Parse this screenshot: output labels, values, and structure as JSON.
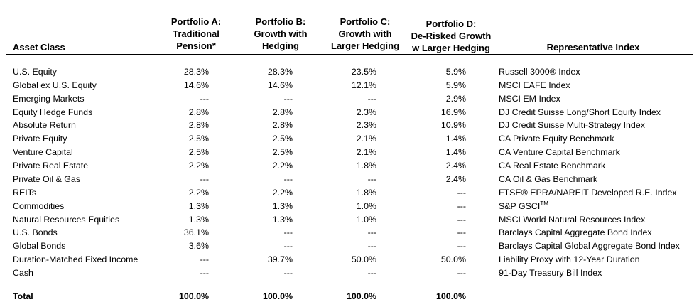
{
  "headers": {
    "asset_class": "Asset Class",
    "portfolio_a": [
      "Portfolio A:",
      "Traditional",
      "Pension*"
    ],
    "portfolio_b": [
      "Portfolio B:",
      "Growth with",
      "Hedging"
    ],
    "portfolio_c": [
      "Portfolio C:",
      "Growth with",
      "Larger Hedging"
    ],
    "portfolio_d": [
      "Portfolio D:",
      "De-Risked Growth",
      "w Larger Hedging"
    ],
    "index": "Representative Index"
  },
  "rows": [
    {
      "name": "U.S. Equity",
      "a": "28.3%",
      "b": "28.3%",
      "c": "23.5%",
      "d": "5.9%",
      "index": "Russell 3000® Index"
    },
    {
      "name": "Global ex U.S. Equity",
      "a": "14.6%",
      "b": "14.6%",
      "c": "12.1%",
      "d": "5.9%",
      "index": "MSCI EAFE Index"
    },
    {
      "name": "Emerging Markets",
      "a": "---",
      "b": "---",
      "c": "---",
      "d": "2.9%",
      "index": "MSCI EM Index"
    },
    {
      "name": "Equity Hedge Funds",
      "a": "2.8%",
      "b": "2.8%",
      "c": "2.3%",
      "d": "16.9%",
      "index": "DJ Credit Suisse Long/Short Equity Index"
    },
    {
      "name": "Absolute Return",
      "a": "2.8%",
      "b": "2.8%",
      "c": "2.3%",
      "d": "10.9%",
      "index": "DJ Credit Suisse Multi-Strategy Index"
    },
    {
      "name": "Private Equity",
      "a": "2.5%",
      "b": "2.5%",
      "c": "2.1%",
      "d": "1.4%",
      "index": "CA Private Equity Benchmark"
    },
    {
      "name": "Venture Capital",
      "a": "2.5%",
      "b": "2.5%",
      "c": "2.1%",
      "d": "1.4%",
      "index": "CA Venture Capital Benchmark"
    },
    {
      "name": "Private Real Estate",
      "a": "2.2%",
      "b": "2.2%",
      "c": "1.8%",
      "d": "2.4%",
      "index": "CA Real Estate Benchmark"
    },
    {
      "name": "Private Oil & Gas",
      "a": "---",
      "b": "---",
      "c": "---",
      "d": "2.4%",
      "index": "CA Oil & Gas Benchmark"
    },
    {
      "name": "REITs",
      "a": "2.2%",
      "b": "2.2%",
      "c": "1.8%",
      "d": "---",
      "index": "FTSE® EPRA/NAREIT Developed R.E. Index"
    },
    {
      "name": "Commodities",
      "a": "1.3%",
      "b": "1.3%",
      "c": "1.0%",
      "d": "---",
      "index": "S&P GSCI",
      "index_sup": "TM"
    },
    {
      "name": "Natural Resources Equities",
      "a": "1.3%",
      "b": "1.3%",
      "c": "1.0%",
      "d": "---",
      "index": "MSCI World Natural Resources Index"
    },
    {
      "name": "U.S. Bonds",
      "a": "36.1%",
      "b": "---",
      "c": "---",
      "d": "---",
      "index": "Barclays Capital Aggregate Bond Index"
    },
    {
      "name": "Global Bonds",
      "a": "3.6%",
      "b": "---",
      "c": "---",
      "d": "---",
      "index": "Barclays Capital Global Aggregate Bond Index"
    },
    {
      "name": "Duration-Matched Fixed Income",
      "a": "---",
      "b": "39.7%",
      "c": "50.0%",
      "d": "50.0%",
      "index": "Liability Proxy with 12-Year Duration"
    },
    {
      "name": "Cash",
      "a": "---",
      "b": "---",
      "c": "---",
      "d": "---",
      "index": "91-Day Treasury Bill Index"
    }
  ],
  "total": {
    "name": "Total",
    "a": "100.0%",
    "b": "100.0%",
    "c": "100.0%",
    "d": "100.0%"
  }
}
